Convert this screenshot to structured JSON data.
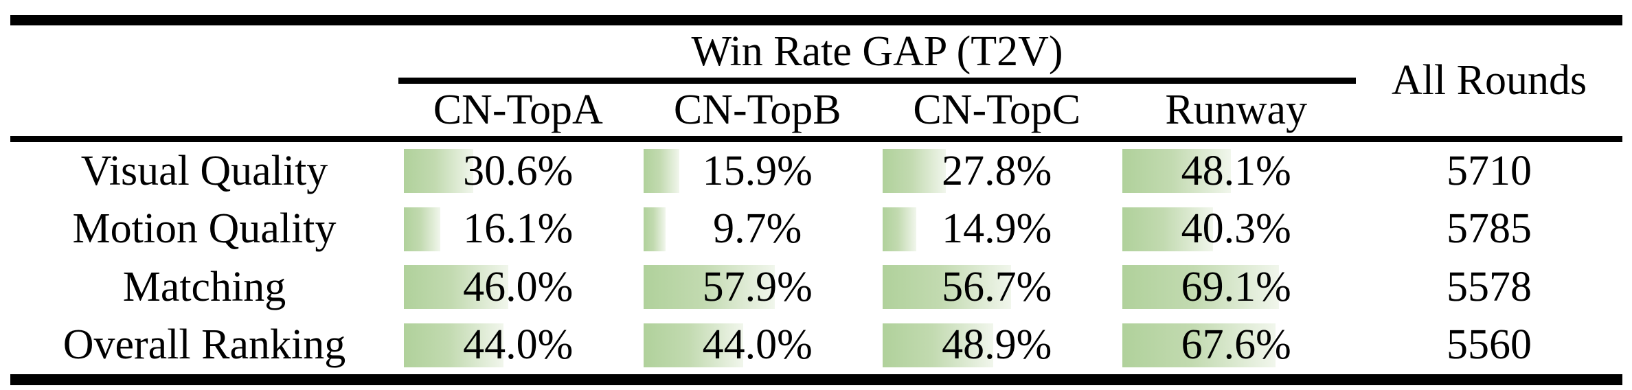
{
  "table": {
    "group_header": "Win Rate GAP (T2V)",
    "all_rounds_header": "All Rounds",
    "columns": [
      "CN-TopA",
      "CN-TopB",
      "CN-TopC",
      "Runway"
    ],
    "rows": [
      {
        "label": "Visual Quality",
        "values": [
          30.6,
          15.9,
          27.8,
          48.1
        ],
        "all_rounds": "5710"
      },
      {
        "label": "Motion Quality",
        "values": [
          16.1,
          9.7,
          14.9,
          40.3
        ],
        "all_rounds": "5785"
      },
      {
        "label": "Matching",
        "values": [
          46.0,
          57.9,
          56.7,
          69.1
        ],
        "all_rounds": "5578"
      },
      {
        "label": "Overall Ranking",
        "values": [
          44.0,
          44.0,
          48.9,
          67.6
        ],
        "all_rounds": "5560"
      }
    ],
    "bar_gradient": [
      "#b0d19b",
      "#c2dab0",
      "#f1f6ec"
    ],
    "rule_color": "#000000"
  },
  "chart_data": {
    "type": "table",
    "title": "Win Rate GAP (T2V)",
    "categories": [
      "Visual Quality",
      "Motion Quality",
      "Matching",
      "Overall Ranking"
    ],
    "series": [
      {
        "name": "CN-TopA",
        "values": [
          30.6,
          16.1,
          46.0,
          44.0
        ]
      },
      {
        "name": "CN-TopB",
        "values": [
          15.9,
          9.7,
          57.9,
          44.0
        ]
      },
      {
        "name": "CN-TopC",
        "values": [
          27.8,
          14.9,
          56.7,
          48.9
        ]
      },
      {
        "name": "Runway",
        "values": [
          48.1,
          40.3,
          69.1,
          67.6
        ]
      },
      {
        "name": "All Rounds",
        "values": [
          5710,
          5785,
          5578,
          5560
        ]
      }
    ],
    "value_unit": "%",
    "note": "Green data bars are proportional to percentage values; All Rounds column is a count, not a percentage."
  }
}
